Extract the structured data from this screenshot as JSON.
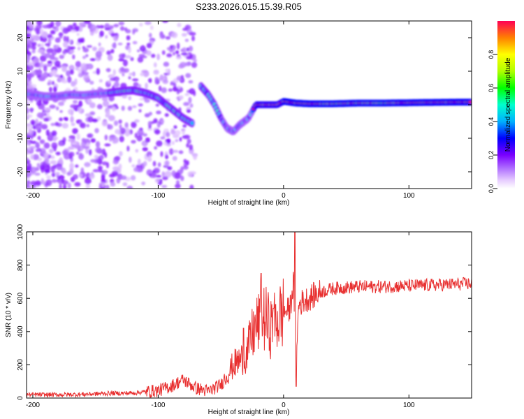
{
  "title": "S233.2026.015.15.39.R05",
  "spectrogram": {
    "type": "heatmap",
    "xlabel": "Height of straight line (km)",
    "ylabel": "Frequency (Hz)",
    "xlim": [
      -205,
      150
    ],
    "ylim": [
      -25,
      25
    ],
    "xticks": [
      -200,
      -100,
      0,
      100
    ],
    "yticks": [
      -20,
      -10,
      0,
      10,
      20
    ],
    "ridge": [
      [
        -200,
        3
      ],
      [
        -190,
        2.5
      ],
      [
        -180,
        2.5
      ],
      [
        -170,
        3
      ],
      [
        -160,
        2.8
      ],
      [
        -150,
        3.2
      ],
      [
        -140,
        3.5
      ],
      [
        -130,
        4
      ],
      [
        -120,
        4.3
      ],
      [
        -110,
        3.5
      ],
      [
        -100,
        2
      ],
      [
        -90,
        -1
      ],
      [
        -80,
        -4
      ],
      [
        -73,
        -5.5
      ],
      [
        -67,
        6
      ],
      [
        -60,
        3
      ],
      [
        -55,
        0
      ],
      [
        -50,
        -4
      ],
      [
        -45,
        -7
      ],
      [
        -40,
        -8
      ],
      [
        -35,
        -6
      ],
      [
        -28,
        -4
      ],
      [
        -25,
        -2
      ],
      [
        -22,
        0
      ],
      [
        -15,
        0
      ],
      [
        -5,
        0
      ],
      [
        0,
        1
      ],
      [
        10,
        0.5
      ],
      [
        20,
        0.3
      ],
      [
        40,
        0.3
      ],
      [
        60,
        0.5
      ],
      [
        80,
        0.5
      ],
      [
        100,
        0.6
      ],
      [
        120,
        0.7
      ],
      [
        150,
        0.8
      ]
    ]
  },
  "colorbar": {
    "label": "Normalized spectral amplitude",
    "range": [
      0,
      1
    ],
    "ticks": [
      "0.0",
      "0.2",
      "0.4",
      "0.6",
      "0.8"
    ]
  },
  "chart_data": [
    {
      "type": "heatmap",
      "title": "S233.2026.015.15.39.R05",
      "xlabel": "Height of straight line (km)",
      "ylabel": "Frequency (Hz)",
      "xlim": [
        -205,
        150
      ],
      "ylim": [
        -25,
        25
      ],
      "colorbar_label": "Normalized spectral amplitude",
      "colorbar_range": [
        0,
        1
      ]
    },
    {
      "type": "line",
      "xlabel": "Height of straight line (km)",
      "ylabel": "SNR (10 * v/v)",
      "xlim": [
        -205,
        150
      ],
      "ylim": [
        0,
        1000
      ],
      "xticks": [
        -200,
        -100,
        0,
        100
      ],
      "yticks": [
        0,
        200,
        400,
        600,
        800,
        1000
      ],
      "series": [
        {
          "name": "SNR",
          "color": "#e83030",
          "x": [
            -205,
            -180,
            -160,
            -140,
            -120,
            -100,
            -90,
            -80,
            -70,
            -60,
            -50,
            -40,
            -30,
            -25,
            -20,
            -15,
            -10,
            -5,
            0,
            5,
            8,
            10,
            12,
            15,
            20,
            30,
            40,
            60,
            80,
            100,
            120,
            140,
            150
          ],
          "y": [
            20,
            20,
            22,
            28,
            30,
            45,
            70,
            110,
            60,
            40,
            80,
            200,
            250,
            380,
            450,
            480,
            420,
            470,
            520,
            530,
            700,
            150,
            560,
            580,
            600,
            640,
            660,
            670,
            670,
            675,
            680,
            685,
            690
          ],
          "spikes": [
            [
              -32,
              420
            ],
            [
              -18,
              750
            ],
            [
              -8,
              540
            ],
            [
              9,
              1000
            ],
            [
              10,
              70
            ]
          ]
        }
      ]
    }
  ]
}
